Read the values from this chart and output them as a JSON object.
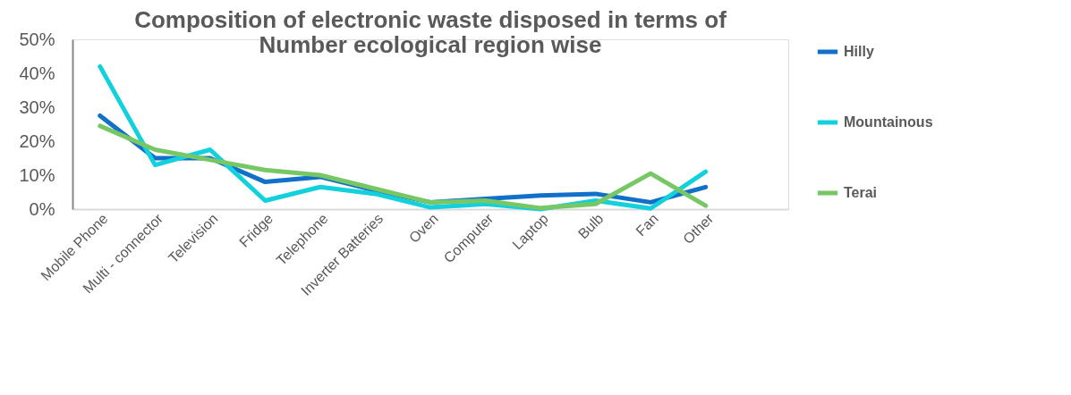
{
  "chart_data": {
    "type": "line",
    "title": "Composition of electronic waste disposed in terms of Number ecological region wise",
    "categories": [
      "Mobile Phone",
      "Multi - connector",
      "Television",
      "Fridge",
      "Telephone",
      "Inverter Batteries",
      "Oven",
      "Computer",
      "Laptop",
      "Bulb",
      "Fan",
      "Other"
    ],
    "series": [
      {
        "name": "Hilly",
        "color": "#1170c8",
        "values": [
          27.5,
          15,
          15,
          8,
          9.5,
          5.5,
          2,
          3,
          4,
          4.5,
          2,
          6.5
        ]
      },
      {
        "name": "Mountainous",
        "color": "#12d0dc",
        "values": [
          42,
          13,
          17.5,
          2.5,
          6.5,
          4.5,
          0.5,
          1.5,
          0,
          2.5,
          0.2,
          11
        ]
      },
      {
        "name": "Terai",
        "color": "#77c865",
        "values": [
          24.5,
          17.5,
          14.5,
          11.5,
          10,
          6,
          2,
          2.5,
          0.3,
          1.5,
          10.5,
          1
        ]
      }
    ],
    "ylim": [
      0,
      50
    ],
    "yticks": [
      {
        "value": 0,
        "label": "0%"
      },
      {
        "value": 10,
        "label": "10%"
      },
      {
        "value": 20,
        "label": "20%"
      },
      {
        "value": 30,
        "label": "30%"
      },
      {
        "value": 40,
        "label": "40%"
      },
      {
        "value": 50,
        "label": "50%"
      }
    ],
    "grid": false,
    "legend": "right",
    "marker": "none",
    "line_style": "solid"
  }
}
